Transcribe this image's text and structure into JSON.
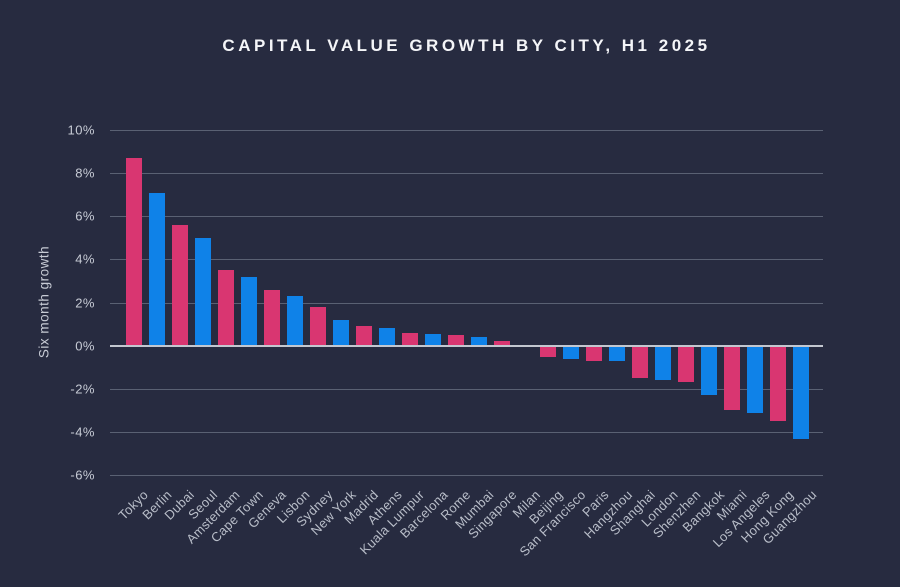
{
  "title": "CAPITAL VALUE GROWTH BY CITY, H1 2025",
  "colors": {
    "background": "#272B40",
    "bar_pink": "#D93671",
    "bar_blue": "#0F82E8",
    "gridline": "#5A6173",
    "zero_line": "#C3C7D0",
    "axis_text": "#C7CBD5",
    "x_label_text": "#B9BEC9",
    "title_text": "#F4F5F8"
  },
  "chart_data": {
    "type": "bar",
    "title": "CAPITAL VALUE GROWTH BY CITY, H1 2025",
    "ylabel": "Six month growth",
    "xlabel": "",
    "unit": "%",
    "ylim": [
      -6,
      10
    ],
    "grid": true,
    "legend": false,
    "y_ticks": [
      10,
      8,
      6,
      4,
      2,
      0,
      -2,
      -4,
      -6
    ],
    "y_tick_labels": [
      "10%",
      "8%",
      "6%",
      "4%",
      "2%",
      "0%",
      "-2%",
      "-4%",
      "-6%"
    ],
    "bar_color_pattern": "alternating",
    "bar_palette": [
      "#D93671",
      "#0F82E8"
    ],
    "categories": [
      "Tokyo",
      "Berlin",
      "Dubai",
      "Seoul",
      "Amsterdam",
      "Cape Town",
      "Geneva",
      "Lisbon",
      "Sydney",
      "New York",
      "Madrid",
      "Athens",
      "Kuala Lumpur",
      "Barcelona",
      "Rome",
      "Mumbai",
      "Singapore",
      "Milan",
      "Beijing",
      "San Francisco",
      "Paris",
      "Hangzhou",
      "Shanghai",
      "London",
      "Shenzhen",
      "Bangkok",
      "Miami",
      "Los Angeles",
      "Hong Kong",
      "Guangzhou"
    ],
    "values": [
      8.7,
      7.1,
      5.6,
      5.0,
      3.5,
      3.2,
      2.6,
      2.3,
      1.8,
      1.2,
      0.9,
      0.8,
      0.6,
      0.55,
      0.5,
      0.4,
      0.2,
      0.0,
      -0.5,
      -0.6,
      -0.7,
      -0.7,
      -1.5,
      -1.6,
      -1.7,
      -2.3,
      -3.0,
      -3.1,
      -3.5,
      -4.3
    ]
  }
}
